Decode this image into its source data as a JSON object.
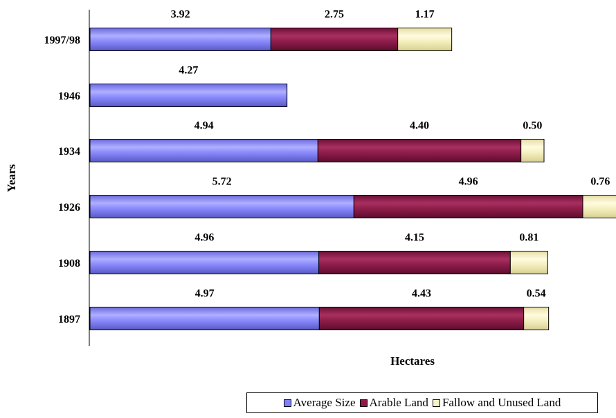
{
  "chart_data": {
    "type": "bar",
    "orientation": "horizontal",
    "stacked": true,
    "categories": [
      "1997/98",
      "1946",
      "1934",
      "1926",
      "1908",
      "1897"
    ],
    "series": [
      {
        "name": "Average Size",
        "color": "#8080ff",
        "values": [
          3.92,
          4.27,
          4.94,
          5.72,
          4.96,
          4.97
        ],
        "labels": [
          "3.92",
          "4.27",
          "4.94",
          "5.72",
          "4.96",
          "4.97"
        ]
      },
      {
        "name": "Arable Land",
        "color": "#8b1a47",
        "values": [
          2.75,
          null,
          4.4,
          4.96,
          4.15,
          4.43
        ],
        "labels": [
          "2.75",
          "",
          "4.40",
          "4.96",
          "4.15",
          "4.43"
        ]
      },
      {
        "name": "Fallow and Unused Land",
        "color": "#f7f2c4",
        "values": [
          1.17,
          null,
          0.5,
          0.76,
          0.81,
          0.54
        ],
        "labels": [
          "1.17",
          "",
          "0.50",
          "0.76",
          "0.81",
          "0.54"
        ]
      }
    ],
    "xlabel": "Hectares",
    "ylabel": "Years",
    "xlim": [
      0,
      11.4
    ],
    "grid": false,
    "legend_position": "bottom-right"
  }
}
